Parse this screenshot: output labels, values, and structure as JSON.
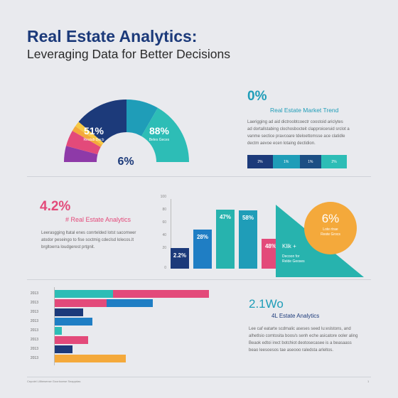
{
  "header": {
    "title": "Real Estate Analytics:",
    "subtitle": "Leveraging Data for Better Decisions"
  },
  "gauge": {
    "left_value": "51%",
    "left_label": "Realab Decb",
    "right_value": "88%",
    "right_label": "Beles Geces",
    "center_value": "6%",
    "colors": [
      "#8e3aa8",
      "#e34a7a",
      "#f4a93b",
      "#f6c945",
      "#1c3a7a",
      "#1f9db8",
      "#2dbdb6"
    ]
  },
  "trend": {
    "value": "0%",
    "label": "Real Estate Market Trend",
    "body": [
      "Laerigging ad aid dictroobtcoectr coostoid ariclytes",
      "ad dortallstabing clochosbocteit clapproiceruid srclot a",
      "vanme sectice pravcoare tdeloettomsse ace clatidle",
      "dectm aevoe ecen lotaing dectidion."
    ],
    "stack": [
      {
        "label": "2%",
        "color": "#1c3a7a"
      },
      {
        "label": "1%",
        "color": "#1f9db8"
      },
      {
        "label": "1%",
        "color": "#1c4f84"
      },
      {
        "label": "2%",
        "color": "#2dbdb6"
      }
    ]
  },
  "analytics_left": {
    "value": "4.2%",
    "label": "# Real Estate Analytics",
    "body": [
      "Leerasgging ltatal enes conrtelded lotst sacomwer",
      "atodor peseingo to fise soctmig cdeclsd lolecos.lt",
      "brgltoerra loudgerest prtgnit."
    ]
  },
  "bar_chart": {
    "yticks": [
      "100",
      "80",
      "60",
      "40",
      "20",
      "0"
    ],
    "bars": [
      {
        "label": "2.2%",
        "value": 30,
        "color": "#1c3a7a"
      },
      {
        "label": "28%",
        "value": 56,
        "color": "#1f7ec4"
      },
      {
        "label": "47%",
        "value": 85,
        "color": "#27b3ae"
      },
      {
        "label": "58%",
        "value": 84,
        "color": "#1f9db8"
      },
      {
        "label": "48%",
        "value": 43,
        "color": "#e34a7a"
      }
    ],
    "ymax": 100
  },
  "callout": {
    "value": "6%",
    "sub1": "Lote rtrae",
    "sub2": "Reste Grocs",
    "triangle_value": "Klik +",
    "triangle_sub1": "Decoon for",
    "triangle_sub2": "Relde Geoses"
  },
  "hbars": {
    "years": [
      "2013",
      "2013",
      "2013",
      "2013",
      "2013",
      "2013",
      "2013",
      "2013"
    ],
    "rows": [
      [
        {
          "color": "#2dbdb6",
          "value": 82
        },
        {
          "color": "#e34a7a",
          "value": 135
        }
      ],
      [
        {
          "color": "#e34a7a",
          "value": 73
        },
        {
          "color": "#1f7ec4",
          "value": 65
        }
      ],
      [
        {
          "color": "#1c3a7a",
          "value": 40
        }
      ],
      [
        {
          "color": "#1f7ec4",
          "value": 53
        }
      ],
      [
        {
          "color": "#2dbdb6",
          "value": 10
        }
      ],
      [
        {
          "color": "#e34a7a",
          "value": 47
        }
      ],
      [
        {
          "color": "#1c3a7a",
          "value": 25
        }
      ],
      [
        {
          "color": "#f4a93b",
          "value": 100
        }
      ]
    ]
  },
  "analytics_right": {
    "value": "2.1Wo",
    "label": "4L Estate Analytics",
    "body": [
      "Lee caf eatarte scdmalic aseses seed lu:eslstons, and",
      "alhetlsio comtosita boos/s senh eche asicatore ooler aling",
      "Beaok edtoi irect botchiot deotosecasee is a beasaass",
      "beao leesoesos tae aseooo raledsta arleltos."
    ]
  },
  "footer": {
    "left": "Cepolel Llilbesense Goorlocese Snappdas",
    "right": "1"
  }
}
